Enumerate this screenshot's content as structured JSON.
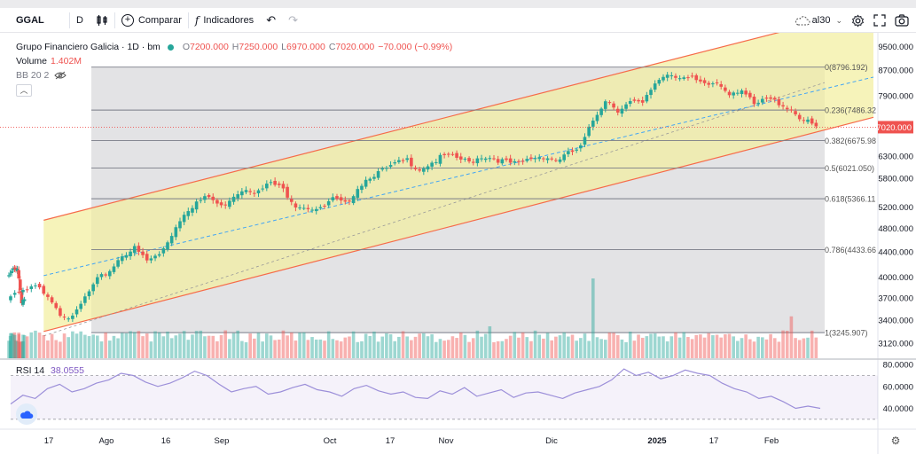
{
  "toolbar": {
    "symbol": "GGAL",
    "interval": "D",
    "compare_label": "Comparar",
    "indicators_label": "Indicadores",
    "right_label": "al30",
    "icons": [
      "bar-style-icon",
      "plus-circle-icon",
      "fx-icon",
      "undo-icon",
      "redo-icon",
      "cloud-icon",
      "gear-icon",
      "fullscreen-icon",
      "camera-icon"
    ]
  },
  "legend": {
    "title": "Grupo Financiero Galicia · 1D · bm",
    "o_label": "O",
    "o_value": "7200.000",
    "h_label": "H",
    "h_value": "7250.000",
    "l_label": "L",
    "l_value": "6970.000",
    "c_label": "C",
    "c_value": "7020.000",
    "change": "−70.000 (−0.99%)",
    "volume_label": "Volume",
    "volume_value": "1.402M",
    "bb_label": "BB 20 2"
  },
  "rsi": {
    "label": "RSI 14",
    "value": "38.0555"
  },
  "colors": {
    "up": "#26a69a",
    "down": "#ef5350",
    "channel": "#f3efa0",
    "channel_line": "#f66b4a",
    "midline": "#42a5f5",
    "rsi": "#9c8fd9",
    "fib": "#787b86"
  },
  "chart_data": [
    {
      "type": "candlestick",
      "series_name": "GGAL",
      "x_tick_labels": [
        "17",
        "Ago",
        "16",
        "Sep",
        "Oct",
        "17",
        "Nov",
        "Dic",
        "2025",
        "17",
        "Feb"
      ],
      "y_tick_labels": [
        "9500.000",
        "8700.000",
        "7900.000",
        "6300.000",
        "5800.000",
        "5200.000",
        "4800.000",
        "4400.000",
        "4000.000",
        "3700.000",
        "3400.000",
        "3120.000"
      ],
      "y_scale": "log",
      "last_price": "7020.000",
      "close_path": [
        [
          0,
          4000
        ],
        [
          3,
          4100
        ],
        [
          6,
          4150
        ],
        [
          9,
          3660
        ],
        [
          12,
          3700
        ],
        [
          15,
          3780
        ],
        [
          18,
          3850
        ],
        [
          21,
          3750
        ],
        [
          24,
          3500
        ],
        [
          27,
          3420
        ],
        [
          30,
          3700
        ],
        [
          33,
          3950
        ],
        [
          36,
          4100
        ],
        [
          39,
          4350
        ],
        [
          42,
          4450
        ],
        [
          45,
          4250
        ],
        [
          48,
          4350
        ],
        [
          51,
          4700
        ],
        [
          54,
          5100
        ],
        [
          57,
          5300
        ],
        [
          60,
          5400
        ],
        [
          63,
          5200
        ],
        [
          66,
          5450
        ],
        [
          69,
          5600
        ],
        [
          72,
          5500
        ],
        [
          75,
          5700
        ],
        [
          78,
          5550
        ],
        [
          81,
          5250
        ],
        [
          84,
          5200
        ],
        [
          87,
          5150
        ],
        [
          90,
          5350
        ],
        [
          93,
          5250
        ],
        [
          96,
          5600
        ],
        [
          99,
          5850
        ],
        [
          102,
          5950
        ],
        [
          105,
          6100
        ],
        [
          108,
          6200
        ],
        [
          111,
          6000
        ],
        [
          114,
          6150
        ],
        [
          117,
          6300
        ],
        [
          120,
          6250
        ],
        [
          123,
          6150
        ],
        [
          126,
          6300
        ],
        [
          129,
          6250
        ],
        [
          132,
          6150
        ],
        [
          135,
          6100
        ],
        [
          138,
          6250
        ],
        [
          141,
          6300
        ],
        [
          144,
          6200
        ],
        [
          147,
          6350
        ],
        [
          150,
          6500
        ],
        [
          153,
          7200
        ],
        [
          156,
          7800
        ],
        [
          159,
          7500
        ],
        [
          162,
          7700
        ],
        [
          165,
          7650
        ],
        [
          168,
          8300
        ],
        [
          171,
          8600
        ],
        [
          174,
          8500
        ],
        [
          177,
          8400
        ],
        [
          180,
          8200
        ],
        [
          183,
          8300
        ],
        [
          186,
          8000
        ],
        [
          189,
          8100
        ],
        [
          192,
          7600
        ],
        [
          195,
          7800
        ],
        [
          198,
          7700
        ],
        [
          201,
          7500
        ],
        [
          204,
          7200
        ],
        [
          207,
          7020
        ]
      ],
      "volume_highlights": [
        [
          38,
          1.0
        ],
        [
          153,
          4.0
        ],
        [
          128,
          1.6
        ],
        [
          201,
          2.1
        ]
      ],
      "fib_levels": [
        {
          "label": "0(8796.192)",
          "value": 8796.192
        },
        {
          "label": "0.236(7486.32",
          "value": 7486.32
        },
        {
          "label": "0.382(6675.98",
          "value": 6675.98
        },
        {
          "label": "0.5(6021.050)",
          "value": 6021.05
        },
        {
          "label": "0.618(5366.11",
          "value": 5366.11
        },
        {
          "label": "0.786(4433.66",
          "value": 4433.66
        },
        {
          "label": "1(3245.907)",
          "value": 3245.907
        }
      ],
      "channel": {
        "upper_start": 4950,
        "upper_end": 10100,
        "lower_start": 3260,
        "lower_end": 6700,
        "mid_start": 4020,
        "mid_end": 8250
      }
    },
    {
      "type": "line",
      "series_name": "RSI 14",
      "y_tick_labels": [
        "80.0000",
        "60.0000",
        "40.0000"
      ],
      "ylim": [
        25,
        85
      ],
      "bands": [
        70,
        30
      ],
      "values": [
        44,
        52,
        49,
        58,
        62,
        55,
        58,
        63,
        66,
        72,
        70,
        64,
        60,
        63,
        68,
        74,
        70,
        62,
        55,
        58,
        60,
        53,
        55,
        59,
        62,
        57,
        55,
        51,
        58,
        61,
        56,
        53,
        55,
        50,
        49,
        56,
        53,
        59,
        51,
        54,
        57,
        50,
        54,
        55,
        52,
        49,
        54,
        57,
        60,
        66,
        76,
        70,
        73,
        67,
        70,
        75,
        72,
        70,
        63,
        58,
        55,
        49,
        51,
        46,
        40,
        42,
        40
      ]
    }
  ]
}
